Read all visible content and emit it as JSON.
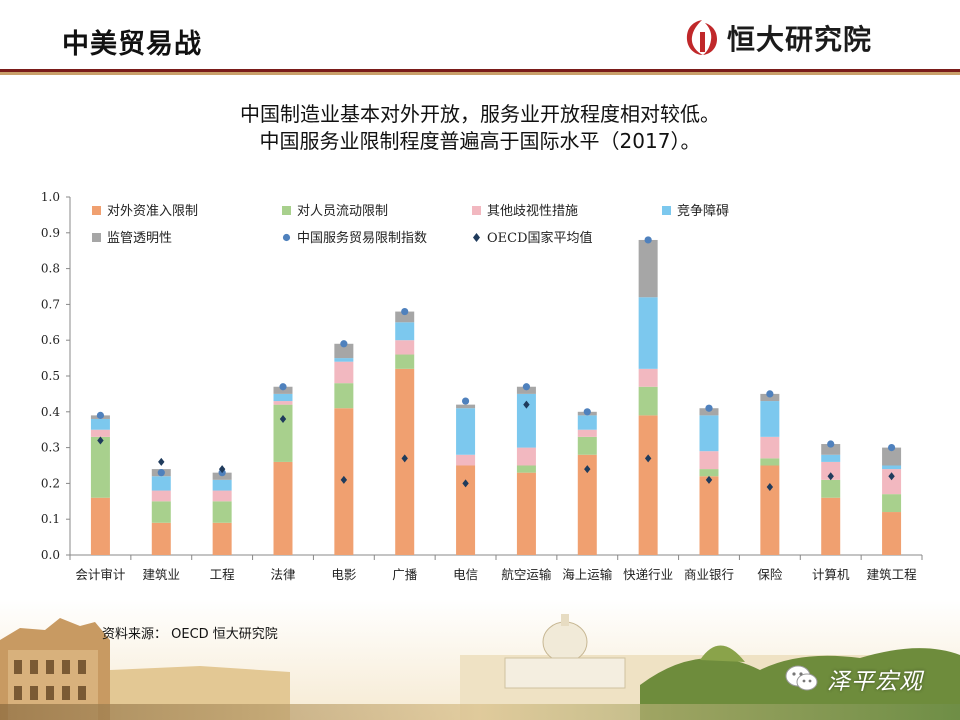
{
  "header": {
    "title": "中美贸易战",
    "brand_name": "恒大研究院",
    "colors": {
      "accent_dark_red": "#7a1c1a",
      "accent_gold": "#c9a06a",
      "logo_red": "#c0282a"
    }
  },
  "subtitle": {
    "line1": "中国制造业基本对外开放，服务业开放程度相对较低。",
    "line2": "中国服务业限制程度普遍高于国际水平（2017）。"
  },
  "footer": {
    "source": "资料来源： OECD 恒大研究院",
    "watermark": "泽平宏观",
    "watermark_icon": "wechat-icon"
  },
  "chart_data": {
    "type": "bar",
    "stacked": true,
    "title": "",
    "xlabel": "",
    "ylabel": "",
    "ylim": [
      0,
      1.0
    ],
    "yticks": [
      "0.0",
      "0.1",
      "0.2",
      "0.3",
      "0.4",
      "0.5",
      "0.6",
      "0.7",
      "0.8",
      "0.9",
      "1.0"
    ],
    "grid": false,
    "legend_position": "top-left",
    "categories": [
      "会计审计",
      "建筑业",
      "工程",
      "法律",
      "电影",
      "广播",
      "电信",
      "航空运输",
      "海上运输",
      "快递行业",
      "商业银行",
      "保险",
      "计算机",
      "建筑工程"
    ],
    "series": [
      {
        "name": "对外资准入限制",
        "color": "#f0a070",
        "values": [
          0.16,
          0.09,
          0.09,
          0.26,
          0.41,
          0.52,
          0.25,
          0.23,
          0.28,
          0.39,
          0.22,
          0.25,
          0.16,
          0.12
        ]
      },
      {
        "name": "对人员流动限制",
        "color": "#a8d08d",
        "values": [
          0.17,
          0.06,
          0.06,
          0.16,
          0.07,
          0.04,
          0.0,
          0.02,
          0.05,
          0.08,
          0.02,
          0.02,
          0.05,
          0.05
        ]
      },
      {
        "name": "其他歧视性措施",
        "color": "#f2b8c0",
        "values": [
          0.02,
          0.03,
          0.03,
          0.01,
          0.06,
          0.04,
          0.03,
          0.05,
          0.02,
          0.05,
          0.05,
          0.06,
          0.05,
          0.07
        ]
      },
      {
        "name": "竞争障碍",
        "color": "#7cc8ee",
        "values": [
          0.03,
          0.04,
          0.03,
          0.02,
          0.01,
          0.05,
          0.13,
          0.15,
          0.04,
          0.2,
          0.1,
          0.1,
          0.02,
          0.01
        ]
      },
      {
        "name": "监管透明性",
        "color": "#a6a6a6",
        "values": [
          0.01,
          0.02,
          0.02,
          0.02,
          0.04,
          0.03,
          0.01,
          0.02,
          0.01,
          0.16,
          0.02,
          0.02,
          0.03,
          0.05
        ]
      }
    ],
    "markers": [
      {
        "name": "中国服务贸易限制指数",
        "shape": "circle",
        "color": "#4f81bd",
        "values": [
          0.39,
          0.23,
          0.23,
          0.47,
          0.59,
          0.68,
          0.43,
          0.47,
          0.4,
          0.88,
          0.41,
          0.45,
          0.31,
          0.3
        ]
      },
      {
        "name": "OECD国家平均值",
        "shape": "diamond",
        "color": "#1f3b5c",
        "values": [
          0.32,
          0.26,
          0.24,
          0.38,
          0.21,
          0.27,
          0.2,
          0.42,
          0.24,
          0.27,
          0.21,
          0.19,
          0.22,
          0.22
        ]
      }
    ]
  }
}
